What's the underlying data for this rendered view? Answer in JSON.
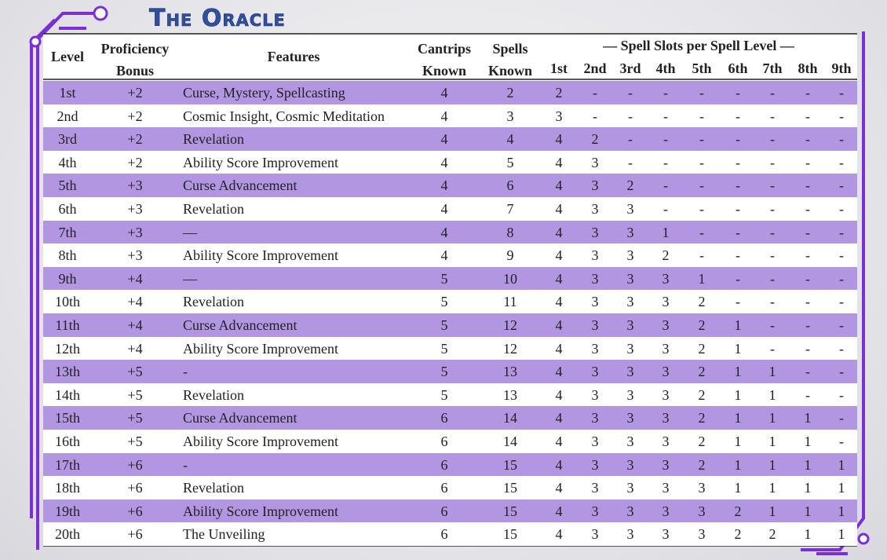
{
  "title": "The Oracle",
  "table": {
    "header": {
      "level": "Level",
      "proficiency": "Proficiency Bonus",
      "features": "Features",
      "cantrips": "Cantrips Known",
      "spells": "Spells Known",
      "slots_heading": "— Spell Slots per Spell Level —",
      "slot_levels": [
        "1st",
        "2nd",
        "3rd",
        "4th",
        "5th",
        "6th",
        "7th",
        "8th",
        "9th"
      ]
    },
    "rows": [
      [
        "1st",
        "+2",
        "Curse, Mystery, Spellcasting",
        "4",
        "2",
        "2",
        "-",
        "-",
        "-",
        "-",
        "-",
        "-",
        "-",
        "-"
      ],
      [
        "2nd",
        "+2",
        "Cosmic Insight, Cosmic Meditation",
        "4",
        "3",
        "3",
        "-",
        "-",
        "-",
        "-",
        "-",
        "-",
        "-",
        "-"
      ],
      [
        "3rd",
        "+2",
        "Revelation",
        "4",
        "4",
        "4",
        "2",
        "-",
        "-",
        "-",
        "-",
        "-",
        "-",
        "-"
      ],
      [
        "4th",
        "+2",
        "Ability Score Improvement",
        "4",
        "5",
        "4",
        "3",
        "-",
        "-",
        "-",
        "-",
        "-",
        "-",
        "-"
      ],
      [
        "5th",
        "+3",
        "Curse Advancement",
        "4",
        "6",
        "4",
        "3",
        "2",
        "-",
        "-",
        "-",
        "-",
        "-",
        "-"
      ],
      [
        "6th",
        "+3",
        "Revelation",
        "4",
        "7",
        "4",
        "3",
        "3",
        "-",
        "-",
        "-",
        "-",
        "-",
        "-"
      ],
      [
        "7th",
        "+3",
        "—",
        "4",
        "8",
        "4",
        "3",
        "3",
        "1",
        "-",
        "-",
        "-",
        "-",
        "-"
      ],
      [
        "8th",
        "+3",
        "Ability Score Improvement",
        "4",
        "9",
        "4",
        "3",
        "3",
        "2",
        "-",
        "-",
        "-",
        "-",
        "-"
      ],
      [
        "9th",
        "+4",
        "—",
        "5",
        "10",
        "4",
        "3",
        "3",
        "3",
        "1",
        "-",
        "-",
        "-",
        "-"
      ],
      [
        "10th",
        "+4",
        "Revelation",
        "5",
        "11",
        "4",
        "3",
        "3",
        "3",
        "2",
        "-",
        "-",
        "-",
        "-"
      ],
      [
        "11th",
        "+4",
        "Curse Advancement",
        "5",
        "12",
        "4",
        "3",
        "3",
        "3",
        "2",
        "1",
        "-",
        "-",
        "-"
      ],
      [
        "12th",
        "+4",
        "Ability Score Improvement",
        "5",
        "12",
        "4",
        "3",
        "3",
        "3",
        "2",
        "1",
        "-",
        "-",
        "-"
      ],
      [
        "13th",
        "+5",
        "-",
        "5",
        "13",
        "4",
        "3",
        "3",
        "3",
        "2",
        "1",
        "1",
        "-",
        "-"
      ],
      [
        "14th",
        "+5",
        "Revelation",
        "5",
        "13",
        "4",
        "3",
        "3",
        "3",
        "2",
        "1",
        "1",
        "-",
        "-"
      ],
      [
        "15th",
        "+5",
        "Curse Advancement",
        "6",
        "14",
        "4",
        "3",
        "3",
        "3",
        "2",
        "1",
        "1",
        "1",
        "-"
      ],
      [
        "16th",
        "+5",
        "Ability Score Improvement",
        "6",
        "14",
        "4",
        "3",
        "3",
        "3",
        "2",
        "1",
        "1",
        "1",
        "-"
      ],
      [
        "17th",
        "+6",
        "-",
        "6",
        "15",
        "4",
        "3",
        "3",
        "3",
        "2",
        "1",
        "1",
        "1",
        "1"
      ],
      [
        "18th",
        "+6",
        "Revelation",
        "6",
        "15",
        "4",
        "3",
        "3",
        "3",
        "3",
        "1",
        "1",
        "1",
        "1"
      ],
      [
        "19th",
        "+6",
        "Ability Score Improvement",
        "6",
        "15",
        "4",
        "3",
        "3",
        "3",
        "3",
        "2",
        "1",
        "1",
        "1"
      ],
      [
        "20th",
        "+6",
        "The Unveiling",
        "6",
        "15",
        "4",
        "3",
        "3",
        "3",
        "3",
        "2",
        "2",
        "1",
        "1"
      ]
    ]
  }
}
